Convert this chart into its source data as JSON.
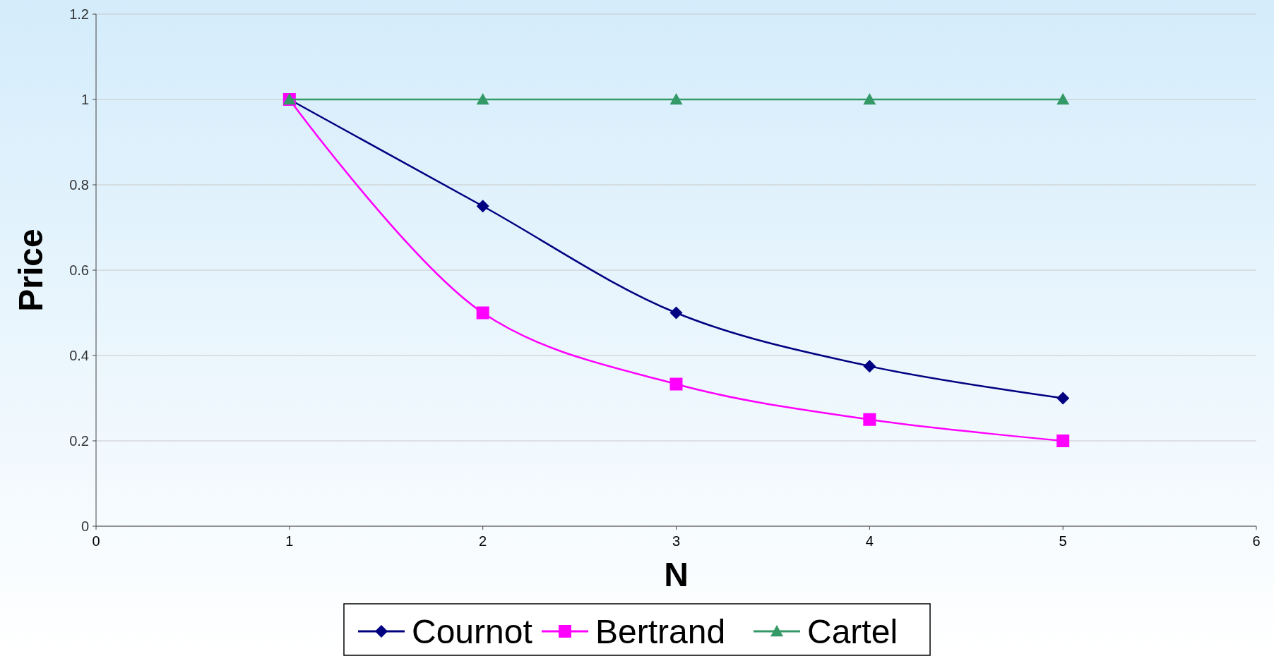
{
  "chart_data": {
    "type": "line",
    "xlabel": "N",
    "ylabel": "Price",
    "x": [
      1,
      2,
      3,
      4,
      5
    ],
    "series": [
      {
        "name": "Cournot",
        "color": "#000080",
        "marker": "diamond",
        "values": [
          1,
          0.75,
          0.5,
          0.375,
          0.3
        ]
      },
      {
        "name": "Bertrand",
        "color": "#ff00ff",
        "marker": "square",
        "values": [
          1,
          0.5,
          0.333,
          0.25,
          0.2
        ]
      },
      {
        "name": "Cartel",
        "color": "#339966",
        "marker": "triangle",
        "values": [
          1,
          1,
          1,
          1,
          1
        ]
      }
    ],
    "xlim": [
      0,
      6
    ],
    "xticks": [
      0,
      1,
      2,
      3,
      4,
      5,
      6
    ],
    "ylim": [
      0,
      1.2
    ],
    "yticks": [
      0,
      0.2,
      0.4,
      0.6,
      0.8,
      1,
      1.2
    ],
    "grid": "y",
    "legend": "bottom"
  }
}
